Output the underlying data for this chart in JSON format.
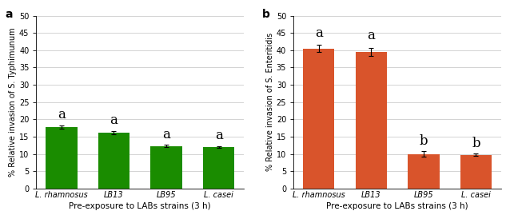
{
  "left_panel": {
    "categories": [
      "L. rhamnosus",
      "LB13",
      "LB95",
      "L. casei"
    ],
    "values": [
      17.8,
      16.2,
      12.3,
      12.0
    ],
    "errors": [
      0.5,
      0.5,
      0.4,
      0.3
    ],
    "bar_color": "#1a8c00",
    "ylabel": "% Relative invasion of S. Typhimunum",
    "xlabel": "Pre-exposure to LABs strains (3 h)",
    "ylim": [
      0,
      50
    ],
    "yticks": [
      0,
      5,
      10,
      15,
      20,
      25,
      30,
      35,
      40,
      45,
      50
    ],
    "sig_labels": [
      "a",
      "a",
      "a",
      "a"
    ],
    "panel_label": "a"
  },
  "right_panel": {
    "categories": [
      "L. rhamnosus",
      "LB13",
      "LB95",
      "L. casei"
    ],
    "values": [
      40.5,
      39.5,
      10.0,
      9.8
    ],
    "errors": [
      1.0,
      1.2,
      0.8,
      0.3
    ],
    "bar_color": "#d9542b",
    "ylabel": "% Relative invasion of S. Enteritidis",
    "xlabel": "Pre-exposure to LABs strains (3 h)",
    "ylim": [
      0,
      50
    ],
    "yticks": [
      0,
      5,
      10,
      15,
      20,
      25,
      30,
      35,
      40,
      45,
      50
    ],
    "sig_labels": [
      "a",
      "a",
      "b",
      "b"
    ],
    "panel_label": "b"
  },
  "fig_bg": "#ffffff",
  "ax_bg": "#ffffff",
  "grid_color": "#cccccc",
  "sig_label_fontsize": 12,
  "tick_fontsize": 7,
  "axis_label_fontsize": 7,
  "xlabel_fontsize": 7.5,
  "panel_label_fontsize": 10,
  "bar_width": 0.6,
  "bar_edgecolor": "none"
}
